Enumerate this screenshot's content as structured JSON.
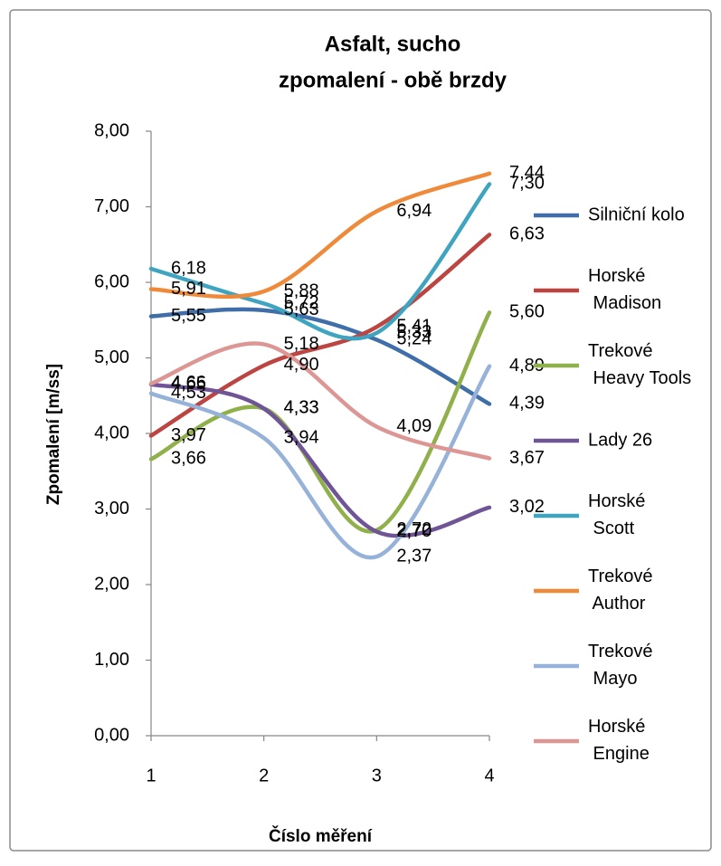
{
  "chart_data": {
    "type": "line",
    "title": [
      "Asfalt, sucho",
      "zpomalení - obě brzdy"
    ],
    "xlabel": "Číslo měření",
    "ylabel": "Zpomalení [m/ss]",
    "categories": [
      "1",
      "2",
      "3",
      "4"
    ],
    "ylim": [
      0,
      8
    ],
    "yticks": [
      {
        "value": 0,
        "label": "0,00"
      },
      {
        "value": 1,
        "label": "1,00"
      },
      {
        "value": 2,
        "label": "2,00"
      },
      {
        "value": 3,
        "label": "3,00"
      },
      {
        "value": 4,
        "label": "4,00"
      },
      {
        "value": 5,
        "label": "5,00"
      },
      {
        "value": 6,
        "label": "6,00"
      },
      {
        "value": 7,
        "label": "7,00"
      },
      {
        "value": 8,
        "label": "8,00"
      }
    ],
    "grid": false,
    "smooth": true,
    "legend": "right",
    "series": [
      {
        "name": "Silniční kolo",
        "color": "#3f6ea8",
        "values": [
          5.55,
          5.63,
          5.24,
          4.39
        ],
        "value_labels": [
          "5,55",
          "5,63",
          "5,24",
          "4,39"
        ]
      },
      {
        "name": "Horské Madison",
        "color": "#bc4541",
        "values": [
          3.97,
          4.9,
          5.41,
          6.63
        ],
        "value_labels": [
          "3,97",
          "4,90",
          "5,41",
          "6,63"
        ]
      },
      {
        "name": "Trekové Heavy Tools",
        "color": "#8fb04a",
        "values": [
          3.66,
          4.33,
          2.72,
          5.6
        ],
        "value_labels": [
          "3,66",
          "4,33",
          "2,72",
          "5,60"
        ]
      },
      {
        "name": "Lady 26",
        "color": "#6f5596",
        "values": [
          4.65,
          4.33,
          2.7,
          3.02
        ],
        "value_labels": [
          "4,65",
          "4,33",
          "2,70",
          "3,02"
        ]
      },
      {
        "name": "Horské Scott",
        "color": "#3fa4bf",
        "values": [
          6.18,
          5.72,
          5.33,
          7.3
        ],
        "value_labels": [
          "6,18",
          "5,72",
          "5,33",
          "7,30"
        ]
      },
      {
        "name": "Trekové Author",
        "color": "#ee8a3a",
        "values": [
          5.91,
          5.88,
          6.94,
          7.44
        ],
        "value_labels": [
          "5,91",
          "5,88",
          "6,94",
          "7,44"
        ]
      },
      {
        "name": "Trekové Mayo",
        "color": "#96b2d9",
        "values": [
          4.53,
          3.94,
          2.37,
          4.89
        ],
        "value_labels": [
          "4,53",
          "3,94",
          "2,37",
          "4,89"
        ]
      },
      {
        "name": "Horské Engine",
        "color": "#dc9794",
        "values": [
          4.66,
          5.18,
          4.09,
          3.67
        ],
        "value_labels": [
          "4,66",
          "5,18",
          "4,09",
          "3,67"
        ]
      }
    ]
  }
}
